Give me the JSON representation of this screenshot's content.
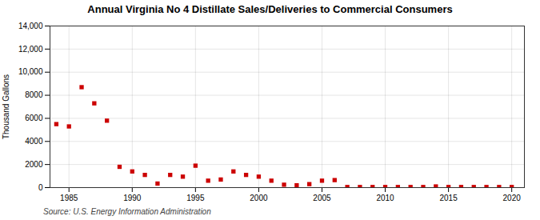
{
  "chart_data": {
    "type": "scatter",
    "title": "Annual Virginia No 4 Distillate Sales/Deliveries to Commercial Consumers",
    "ylabel": "Thousand Gallons",
    "source": "Source: U.S. Energy Information Administration",
    "x": [
      1984,
      1985,
      1986,
      1987,
      1988,
      1989,
      1990,
      1991,
      1992,
      1993,
      1994,
      1995,
      1996,
      1997,
      1998,
      1999,
      2000,
      2001,
      2002,
      2003,
      2004,
      2005,
      2006,
      2007,
      2008,
      2009,
      2010,
      2011,
      2012,
      2013,
      2014,
      2015,
      2016,
      2017,
      2018,
      2019,
      2020
    ],
    "values": [
      5500,
      5300,
      8700,
      7300,
      5800,
      1800,
      1400,
      1100,
      350,
      1100,
      950,
      1900,
      600,
      700,
      1400,
      1100,
      950,
      600,
      250,
      200,
      300,
      600,
      650,
      50,
      50,
      50,
      50,
      50,
      50,
      50,
      100,
      50,
      50,
      50,
      50,
      50,
      50
    ],
    "color": "#cc0000",
    "marker": "square",
    "xlim": [
      1983.5,
      2021
    ],
    "ylim": [
      0,
      14000
    ],
    "xticks": [
      1985,
      1990,
      1995,
      2000,
      2005,
      2010,
      2015,
      2020
    ],
    "yticks": [
      0,
      2000,
      4000,
      6000,
      8000,
      {
        "value": 10000,
        "label": "10,000"
      },
      {
        "value": 12000,
        "label": "12,000"
      },
      {
        "value": 14000,
        "label": "14,000"
      }
    ],
    "grid": true
  }
}
